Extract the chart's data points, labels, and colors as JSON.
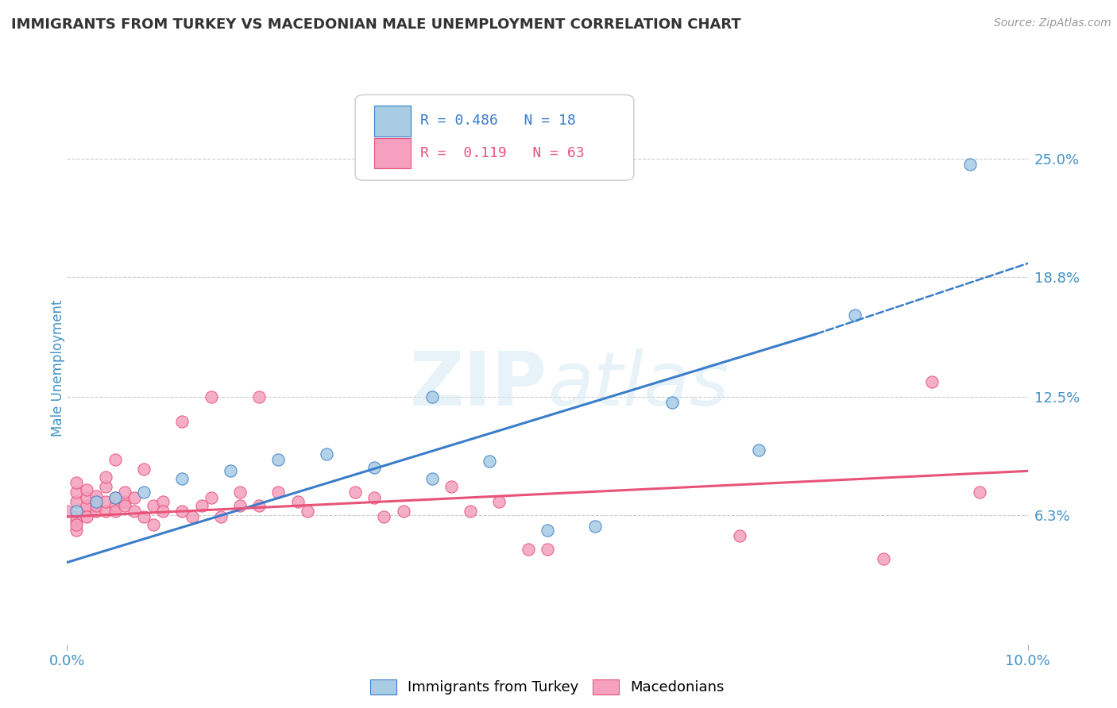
{
  "title": "IMMIGRANTS FROM TURKEY VS MACEDONIAN MALE UNEMPLOYMENT CORRELATION CHART",
  "source": "Source: ZipAtlas.com",
  "ylabel": "Male Unemployment",
  "xlim": [
    0.0,
    0.1
  ],
  "ylim": [
    -0.005,
    0.285
  ],
  "yticks": [
    0.063,
    0.125,
    0.188,
    0.25
  ],
  "ytick_labels": [
    "6.3%",
    "12.5%",
    "18.8%",
    "25.0%"
  ],
  "xticks": [
    0.0,
    0.1
  ],
  "xtick_labels": [
    "0.0%",
    "10.0%"
  ],
  "blue_color": "#a8cce4",
  "pink_color": "#f4a0be",
  "line_blue": "#3a7dc9",
  "line_pink": "#e8537a",
  "title_color": "#333333",
  "axis_label_color": "#4292c6",
  "blue_scatter": [
    [
      0.001,
      0.065
    ],
    [
      0.003,
      0.07
    ],
    [
      0.005,
      0.072
    ],
    [
      0.008,
      0.075
    ],
    [
      0.012,
      0.082
    ],
    [
      0.017,
      0.086
    ],
    [
      0.022,
      0.092
    ],
    [
      0.027,
      0.095
    ],
    [
      0.032,
      0.088
    ],
    [
      0.038,
      0.082
    ],
    [
      0.044,
      0.091
    ],
    [
      0.05,
      0.055
    ],
    [
      0.055,
      0.057
    ],
    [
      0.063,
      0.122
    ],
    [
      0.072,
      0.097
    ],
    [
      0.038,
      0.125
    ],
    [
      0.082,
      0.168
    ],
    [
      0.094,
      0.247
    ]
  ],
  "pink_scatter": [
    [
      0.0,
      0.065
    ],
    [
      0.001,
      0.06
    ],
    [
      0.001,
      0.062
    ],
    [
      0.001,
      0.055
    ],
    [
      0.001,
      0.058
    ],
    [
      0.001,
      0.07
    ],
    [
      0.001,
      0.075
    ],
    [
      0.001,
      0.08
    ],
    [
      0.002,
      0.065
    ],
    [
      0.002,
      0.068
    ],
    [
      0.002,
      0.072
    ],
    [
      0.002,
      0.076
    ],
    [
      0.002,
      0.062
    ],
    [
      0.003,
      0.065
    ],
    [
      0.003,
      0.07
    ],
    [
      0.003,
      0.073
    ],
    [
      0.003,
      0.068
    ],
    [
      0.004,
      0.065
    ],
    [
      0.004,
      0.07
    ],
    [
      0.004,
      0.078
    ],
    [
      0.004,
      0.083
    ],
    [
      0.005,
      0.068
    ],
    [
      0.005,
      0.072
    ],
    [
      0.005,
      0.065
    ],
    [
      0.005,
      0.092
    ],
    [
      0.006,
      0.07
    ],
    [
      0.006,
      0.075
    ],
    [
      0.006,
      0.068
    ],
    [
      0.007,
      0.065
    ],
    [
      0.007,
      0.072
    ],
    [
      0.008,
      0.087
    ],
    [
      0.008,
      0.062
    ],
    [
      0.009,
      0.068
    ],
    [
      0.009,
      0.058
    ],
    [
      0.01,
      0.07
    ],
    [
      0.01,
      0.065
    ],
    [
      0.012,
      0.112
    ],
    [
      0.012,
      0.065
    ],
    [
      0.013,
      0.062
    ],
    [
      0.014,
      0.068
    ],
    [
      0.015,
      0.125
    ],
    [
      0.015,
      0.072
    ],
    [
      0.016,
      0.062
    ],
    [
      0.018,
      0.075
    ],
    [
      0.018,
      0.068
    ],
    [
      0.02,
      0.125
    ],
    [
      0.02,
      0.068
    ],
    [
      0.022,
      0.075
    ],
    [
      0.024,
      0.07
    ],
    [
      0.025,
      0.065
    ],
    [
      0.03,
      0.075
    ],
    [
      0.032,
      0.072
    ],
    [
      0.033,
      0.062
    ],
    [
      0.035,
      0.065
    ],
    [
      0.04,
      0.078
    ],
    [
      0.042,
      0.065
    ],
    [
      0.045,
      0.07
    ],
    [
      0.048,
      0.045
    ],
    [
      0.05,
      0.045
    ],
    [
      0.07,
      0.052
    ],
    [
      0.085,
      0.04
    ],
    [
      0.09,
      0.133
    ],
    [
      0.095,
      0.075
    ]
  ],
  "blue_trendline_solid": [
    [
      0.0,
      0.038
    ],
    [
      0.078,
      0.158
    ]
  ],
  "blue_trendline_dashed": [
    [
      0.078,
      0.158
    ],
    [
      0.1,
      0.195
    ]
  ],
  "pink_trendline": [
    [
      0.0,
      0.062
    ],
    [
      0.1,
      0.086
    ]
  ],
  "grid_color": "#cccccc",
  "background_color": "#ffffff",
  "legend_r1": "R = 0.486",
  "legend_n1": "N = 18",
  "legend_r2": "R =  0.119",
  "legend_n2": "N = 63"
}
